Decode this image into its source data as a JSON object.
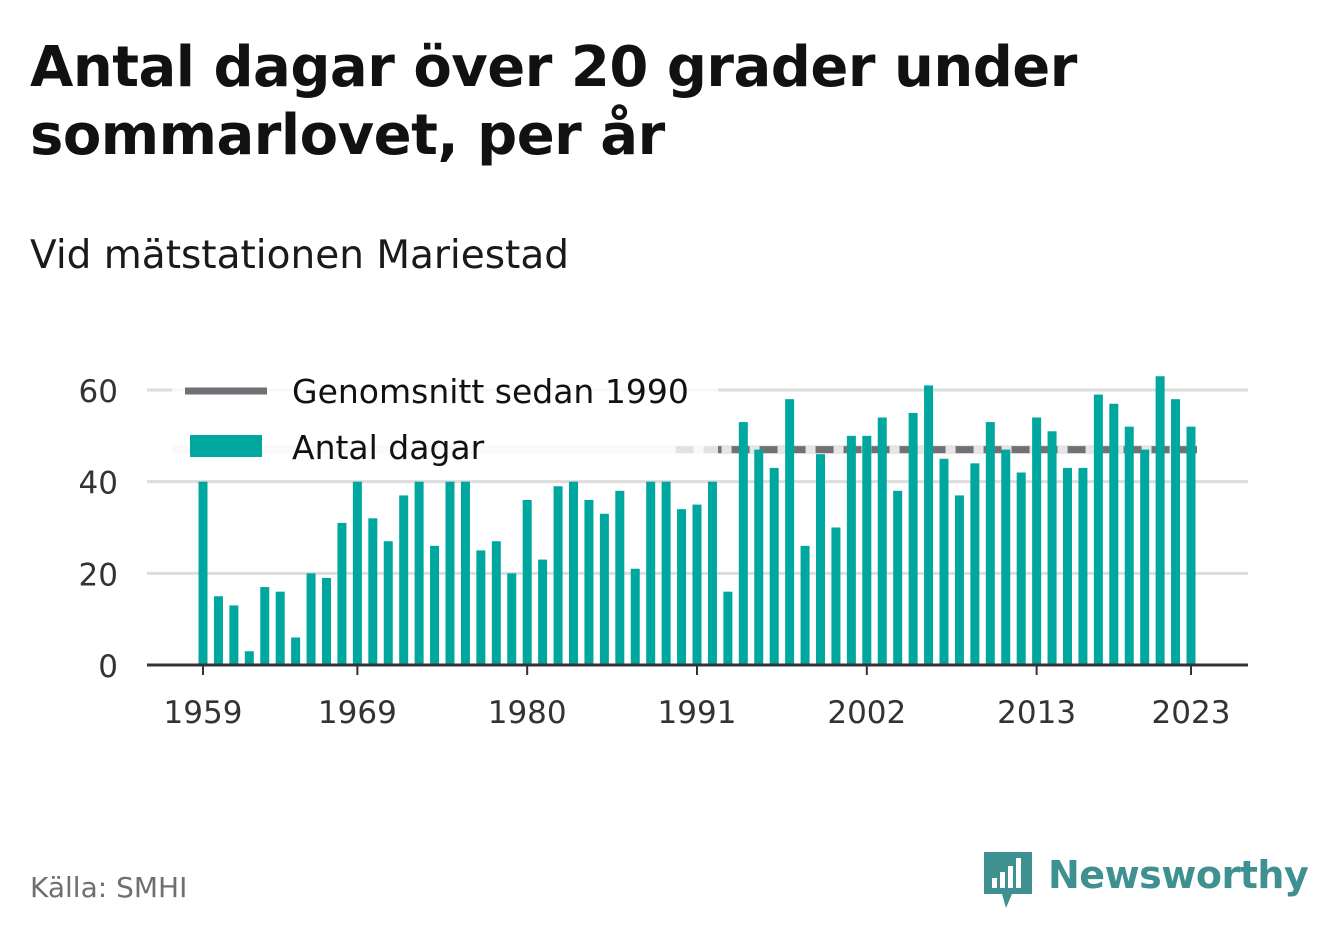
{
  "title": "Antal dagar över 20 grader under sommarlovet, per år",
  "subtitle": "Vid mätstationen Mariestad",
  "source": "Källa: SMHI",
  "logo_text": "Newsworthy",
  "colors": {
    "bar": "#00a79e",
    "average": "#717175",
    "grid": "#dddddd",
    "axis": "#333333",
    "text": "#111111",
    "muted": "#6f6f6f",
    "logo": "#3f9191"
  },
  "chart_data": {
    "type": "bar",
    "x": [
      1959,
      1960,
      1961,
      1962,
      1963,
      1964,
      1965,
      1966,
      1967,
      1968,
      1969,
      1970,
      1971,
      1972,
      1973,
      1974,
      1975,
      1976,
      1977,
      1978,
      1979,
      1980,
      1981,
      1982,
      1983,
      1984,
      1985,
      1986,
      1987,
      1988,
      1989,
      1990,
      1991,
      1992,
      1993,
      1994,
      1995,
      1996,
      1997,
      1998,
      1999,
      2000,
      2001,
      2002,
      2003,
      2004,
      2005,
      2006,
      2007,
      2008,
      2009,
      2010,
      2011,
      2012,
      2013,
      2014,
      2015,
      2016,
      2017,
      2018,
      2019,
      2020,
      2021,
      2022,
      2023
    ],
    "series": [
      {
        "name": "Antal dagar",
        "values": [
          40,
          15,
          13,
          3,
          17,
          16,
          6,
          20,
          19,
          31,
          40,
          32,
          27,
          37,
          40,
          26,
          40,
          40,
          25,
          27,
          20,
          36,
          23,
          39,
          40,
          36,
          33,
          38,
          21,
          40,
          40,
          34,
          35,
          40,
          16,
          53,
          47,
          43,
          58,
          26,
          46,
          30,
          50,
          50,
          54,
          38,
          55,
          61,
          45,
          37,
          44,
          53,
          47,
          42,
          54,
          51,
          43,
          43,
          59,
          57,
          52,
          47,
          63,
          58,
          52
        ]
      },
      {
        "name": "Genomsnitt sedan 1990",
        "type": "line",
        "value": 47
      }
    ],
    "x_ticks": [
      "1959",
      "1969",
      "1980",
      "1991",
      "2002",
      "2013",
      "2023"
    ],
    "y_ticks": [
      "0",
      "20",
      "40",
      "60"
    ],
    "ylim": [
      0,
      65
    ],
    "grid": true,
    "legend": "top-left"
  }
}
